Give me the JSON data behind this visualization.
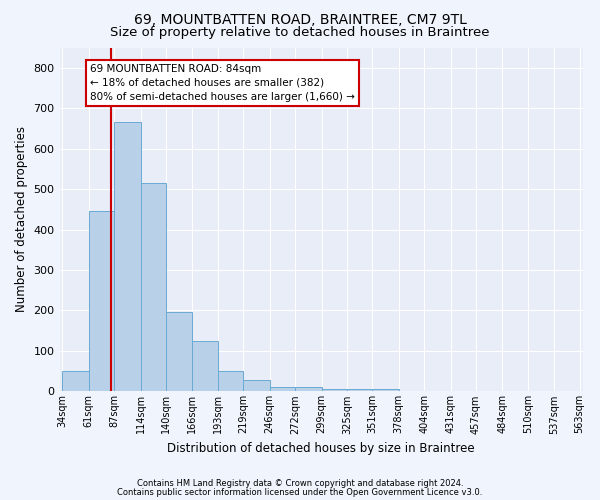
{
  "title": "69, MOUNTBATTEN ROAD, BRAINTREE, CM7 9TL",
  "subtitle": "Size of property relative to detached houses in Braintree",
  "xlabel": "Distribution of detached houses by size in Braintree",
  "ylabel": "Number of detached properties",
  "bar_edges": [
    34,
    61,
    87,
    114,
    140,
    166,
    193,
    219,
    246,
    272,
    299,
    325,
    351,
    378,
    404,
    431,
    457,
    484,
    510,
    537,
    563
  ],
  "bar_heights": [
    50,
    445,
    665,
    515,
    195,
    125,
    50,
    27,
    10,
    10,
    7,
    7,
    7,
    0,
    0,
    0,
    0,
    0,
    0,
    0
  ],
  "bar_color": "#b8d0e8",
  "bar_edgecolor": "#6aaad4",
  "property_size": 84,
  "vline_color": "#cc0000",
  "annotation_text": "69 MOUNTBATTEN ROAD: 84sqm\n← 18% of detached houses are smaller (382)\n80% of semi-detached houses are larger (1,660) →",
  "annotation_box_facecolor": "#ffffff",
  "annotation_box_edgecolor": "#cc0000",
  "ylim": [
    0,
    850
  ],
  "yticks": [
    0,
    100,
    200,
    300,
    400,
    500,
    600,
    700,
    800
  ],
  "plot_bg_color": "#e8edf8",
  "fig_bg_color": "#f0f4fc",
  "grid_color": "#ffffff",
  "footer_line1": "Contains HM Land Registry data © Crown copyright and database right 2024.",
  "footer_line2": "Contains public sector information licensed under the Open Government Licence v3.0.",
  "title_fontsize": 10,
  "subtitle_fontsize": 9.5,
  "ylabel_fontsize": 8.5,
  "tick_label_fontsize": 7,
  "annotation_fontsize": 7.5,
  "tick_labels": [
    "34sqm",
    "61sqm",
    "87sqm",
    "114sqm",
    "140sqm",
    "166sqm",
    "193sqm",
    "219sqm",
    "246sqm",
    "272sqm",
    "299sqm",
    "325sqm",
    "351sqm",
    "378sqm",
    "404sqm",
    "431sqm",
    "457sqm",
    "484sqm",
    "510sqm",
    "537sqm",
    "563sqm"
  ]
}
